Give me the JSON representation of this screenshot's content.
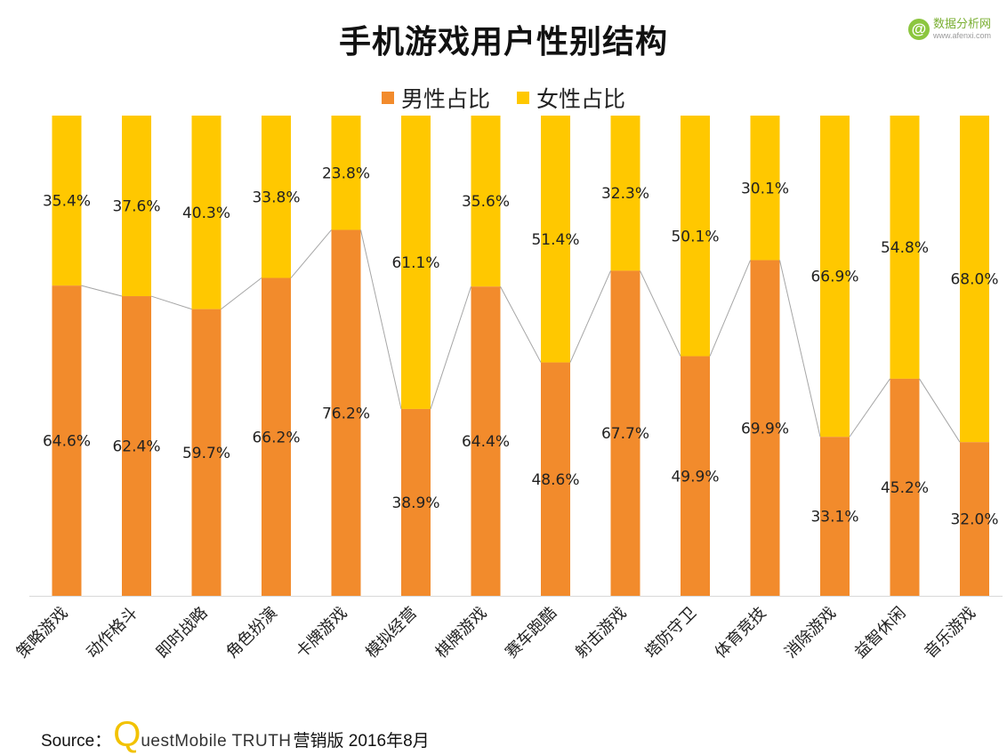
{
  "title": "手机游戏用户性别结构",
  "logo": {
    "mark": "@",
    "name": "数据分析网",
    "url": "www.afenxi.com"
  },
  "source": {
    "prefix": "Source：",
    "q": "Q",
    "brand": "uestMobile TRUTH",
    "rest": "营销版 2016年8月"
  },
  "colors": {
    "male": "#f28b2c",
    "female": "#ffc800",
    "connector": "#a6a6a6",
    "axis": "#d9d9d9"
  },
  "chart_data": {
    "type": "bar",
    "stacked": true,
    "title": "手机游戏用户性别结构",
    "categories": [
      "策略游戏",
      "动作格斗",
      "即时战略",
      "角色扮演",
      "卡牌游戏",
      "模拟经营",
      "棋牌游戏",
      "赛车跑酷",
      "射击游戏",
      "塔防守卫",
      "体育竞技",
      "消除游戏",
      "益智休闲",
      "音乐游戏"
    ],
    "series": [
      {
        "name": "男性占比",
        "values": [
          64.6,
          62.4,
          59.7,
          66.2,
          76.2,
          38.9,
          64.4,
          48.6,
          67.7,
          49.9,
          69.9,
          33.1,
          45.2,
          32.0
        ],
        "labels": [
          "64.6%",
          "62.4%",
          "59.7%",
          "66.2%",
          "76.2%",
          "38.9%",
          "64.4%",
          "48.6%",
          "67.7%",
          "49.9%",
          "69.9%",
          "33.1%",
          "45.2%",
          "32.0%"
        ]
      },
      {
        "name": "女性占比",
        "values": [
          35.4,
          37.6,
          40.3,
          33.8,
          23.8,
          61.1,
          35.6,
          51.4,
          32.3,
          50.1,
          30.1,
          66.9,
          54.8,
          68.0
        ],
        "labels": [
          "35.4%",
          "37.6%",
          "40.3%",
          "33.8%",
          "23.8%",
          "61.1%",
          "35.6%",
          "51.4%",
          "32.3%",
          "50.1%",
          "30.1%",
          "66.9%",
          "54.8%",
          "68.0%"
        ]
      }
    ],
    "ylim": [
      0,
      100
    ],
    "legend": "top-center",
    "grid": false,
    "series_lines": true
  }
}
